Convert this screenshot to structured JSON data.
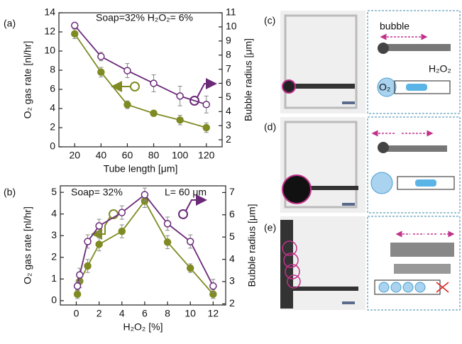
{
  "chart_data": [
    {
      "type": "line",
      "panel_label": "(a)",
      "annotations": [
        "Soap=32%  H₂O₂= 6%"
      ],
      "xlabel": "Tube length [μm]",
      "ylabel": "O₂ gas rate [nl/hr]",
      "y2label": "Bubble radius [μm]",
      "x": [
        20,
        40,
        60,
        80,
        100,
        120
      ],
      "xlim": [
        8,
        132
      ],
      "xticks": [
        20,
        40,
        60,
        80,
        100,
        120
      ],
      "ylim": [
        0,
        14
      ],
      "yticks": [
        0,
        2,
        4,
        6,
        8,
        10,
        12,
        14
      ],
      "y2lim": [
        1.5,
        11
      ],
      "y2ticks": [
        2,
        3,
        4,
        5,
        6,
        7,
        8,
        9,
        10,
        11
      ],
      "series": [
        {
          "color": "#7f8b22",
          "values": [
            11.8,
            7.8,
            4.4,
            3.5,
            2.8,
            2.0
          ],
          "errors": [
            0.5,
            0.5,
            0.4,
            0.3,
            0.5,
            0.5
          ]
        },
        {
          "color": "#6b2a78",
          "axis": "y2",
          "values": [
            10.1,
            7.9,
            6.9,
            6.0,
            5.1,
            4.5
          ],
          "errors": [
            0.2,
            0.3,
            0.5,
            0.6,
            0.7,
            0.6
          ]
        }
      ]
    },
    {
      "type": "line",
      "panel_label": "(b)",
      "annotations": [
        "Soap= 32%",
        "L= 60 μm"
      ],
      "xlabel": "H₂O₂ [%]",
      "ylabel": "O₂ gas rate [nl/hr]",
      "y2label": "Bubble radius [μm]",
      "x": [
        0.1,
        0.3,
        1,
        2,
        4,
        6,
        8,
        10,
        12
      ],
      "xlim": [
        -1.4,
        13.1
      ],
      "xticks": [
        0,
        2,
        4,
        6,
        8,
        10,
        12
      ],
      "ylim": [
        -0.2,
        5.3
      ],
      "yticks": [
        0,
        1,
        2,
        3,
        4,
        5
      ],
      "y2lim": [
        1.95,
        7.3
      ],
      "y2ticks": [
        2,
        3,
        4,
        5,
        6,
        7
      ],
      "series": [
        {
          "color": "#7f8b22",
          "values": [
            0.3,
            0.9,
            1.6,
            2.6,
            3.2,
            4.6,
            2.7,
            1.5,
            0.3
          ],
          "errors": [
            0.2,
            0.3,
            0.3,
            0.3,
            0.3,
            0.3,
            0.3,
            0.2,
            0.2
          ]
        },
        {
          "color": "#6b2a78",
          "axis": "y2",
          "values": [
            2.8,
            3.3,
            4.8,
            5.5,
            6.1,
            6.9,
            5.6,
            4.8,
            2.8
          ],
          "errors": [
            0.2,
            0.3,
            0.3,
            0.3,
            0.3,
            0.3,
            0.3,
            0.3,
            0.3
          ]
        }
      ]
    }
  ],
  "micrographs": {
    "labels": [
      "(c)",
      "(d)",
      "(e)"
    ],
    "bubble": "bubble",
    "h2o2": "H₂O₂",
    "o2": "O₂"
  }
}
